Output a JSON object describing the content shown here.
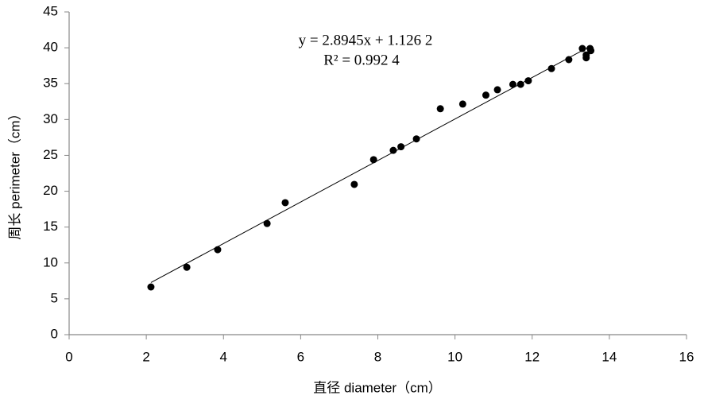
{
  "chart_data": {
    "type": "scatter",
    "x_label": "直径 diameter（cm）",
    "y_label": "周长 perimeter（cm）",
    "x": [
      2.12,
      3.05,
      3.85,
      5.13,
      5.6,
      7.39,
      7.89,
      8.4,
      8.6,
      9.0,
      9.62,
      10.2,
      10.8,
      11.1,
      11.5,
      11.7,
      11.9,
      12.5,
      12.95,
      13.3,
      13.4,
      13.4,
      13.5,
      13.52
    ],
    "values": [
      6.65,
      9.4,
      11.85,
      15.5,
      18.4,
      20.95,
      24.4,
      25.7,
      26.2,
      27.3,
      31.5,
      32.15,
      33.4,
      34.15,
      34.9,
      34.9,
      35.4,
      37.1,
      38.35,
      39.9,
      38.6,
      39.0,
      39.9,
      39.6
    ],
    "color": "#000000",
    "trendline": {
      "slope": 2.8945,
      "intercept": 1.1262,
      "equation": "y = 2.8945x + 1.126 2",
      "r_squared": "R² = 0.992 4"
    },
    "xlim": [
      0,
      16
    ],
    "xticks": [
      0,
      2,
      4,
      6,
      8,
      10,
      12,
      14,
      16
    ],
    "ylim": [
      0,
      45
    ],
    "yticks": [
      0,
      5,
      10,
      15,
      20,
      25,
      30,
      35,
      40,
      45
    ],
    "grid": false
  }
}
